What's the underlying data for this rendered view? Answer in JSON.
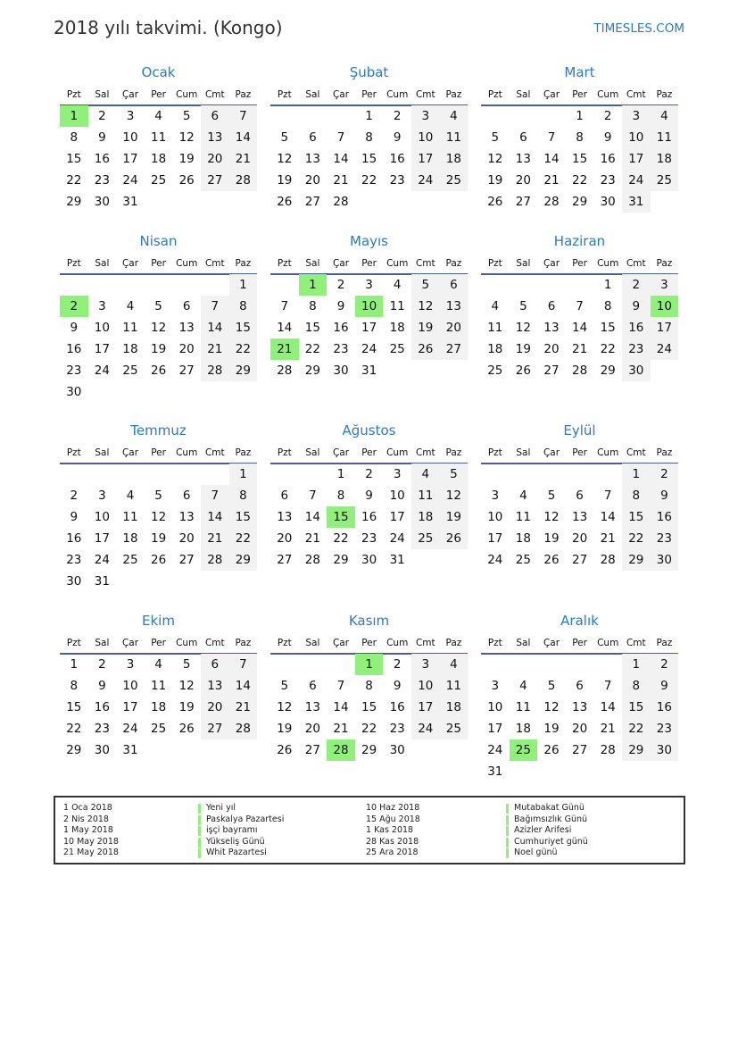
{
  "header": {
    "title": "2018 yılı takvimi. (Kongo)",
    "brand": "TIMESLES.COM"
  },
  "weekdays": [
    "Pzt",
    "Sal",
    "Çar",
    "Per",
    "Cum",
    "Cmt",
    "Paz"
  ],
  "colors": {
    "accent": "#2b7bbf",
    "holiday": "#8ff07a",
    "weekend": "#f2f2f2",
    "rule": "#4a6090"
  },
  "months": [
    {
      "name": "Ocak",
      "first_weekday": "Pzt",
      "days": 31,
      "holidays": [
        1
      ]
    },
    {
      "name": "Şubat",
      "first_weekday": "Per",
      "days": 28,
      "holidays": []
    },
    {
      "name": "Mart",
      "first_weekday": "Per",
      "days": 31,
      "holidays": []
    },
    {
      "name": "Nisan",
      "first_weekday": "Paz",
      "days": 30,
      "holidays": [
        2
      ]
    },
    {
      "name": "Mayıs",
      "first_weekday": "Sal",
      "days": 31,
      "holidays": [
        1,
        10,
        21
      ]
    },
    {
      "name": "Haziran",
      "first_weekday": "Cum",
      "days": 30,
      "holidays": [
        10
      ]
    },
    {
      "name": "Temmuz",
      "first_weekday": "Paz",
      "days": 31,
      "holidays": []
    },
    {
      "name": "Ağustos",
      "first_weekday": "Çar",
      "days": 31,
      "holidays": [
        15
      ]
    },
    {
      "name": "Eylül",
      "first_weekday": "Cmt",
      "days": 30,
      "holidays": []
    },
    {
      "name": "Ekim",
      "first_weekday": "Pzt",
      "days": 31,
      "holidays": []
    },
    {
      "name": "Kasım",
      "first_weekday": "Per",
      "days": 30,
      "holidays": [
        1,
        28
      ]
    },
    {
      "name": "Aralık",
      "first_weekday": "Cmt",
      "days": 31,
      "holidays": [
        25
      ]
    }
  ],
  "legend": [
    {
      "date": "1 Oca 2018",
      "name": "Yeni yıl"
    },
    {
      "date": "2 Nis 2018",
      "name": "Paskalya Pazartesi"
    },
    {
      "date": "1 May 2018",
      "name": "işçi bayramı"
    },
    {
      "date": "10 May 2018",
      "name": "Yükseliş Günü"
    },
    {
      "date": "21 May 2018",
      "name": "Whit Pazartesi"
    },
    {
      "date": "10 Haz 2018",
      "name": "Mutabakat Günü"
    },
    {
      "date": "15 Ağu 2018",
      "name": "Bağımsızlık Günü"
    },
    {
      "date": "1 Kas 2018",
      "name": "Azizler Arifesi"
    },
    {
      "date": "28 Kas 2018",
      "name": "Cumhuriyet günü"
    },
    {
      "date": "25 Ara 2018",
      "name": "Noel günü"
    }
  ]
}
